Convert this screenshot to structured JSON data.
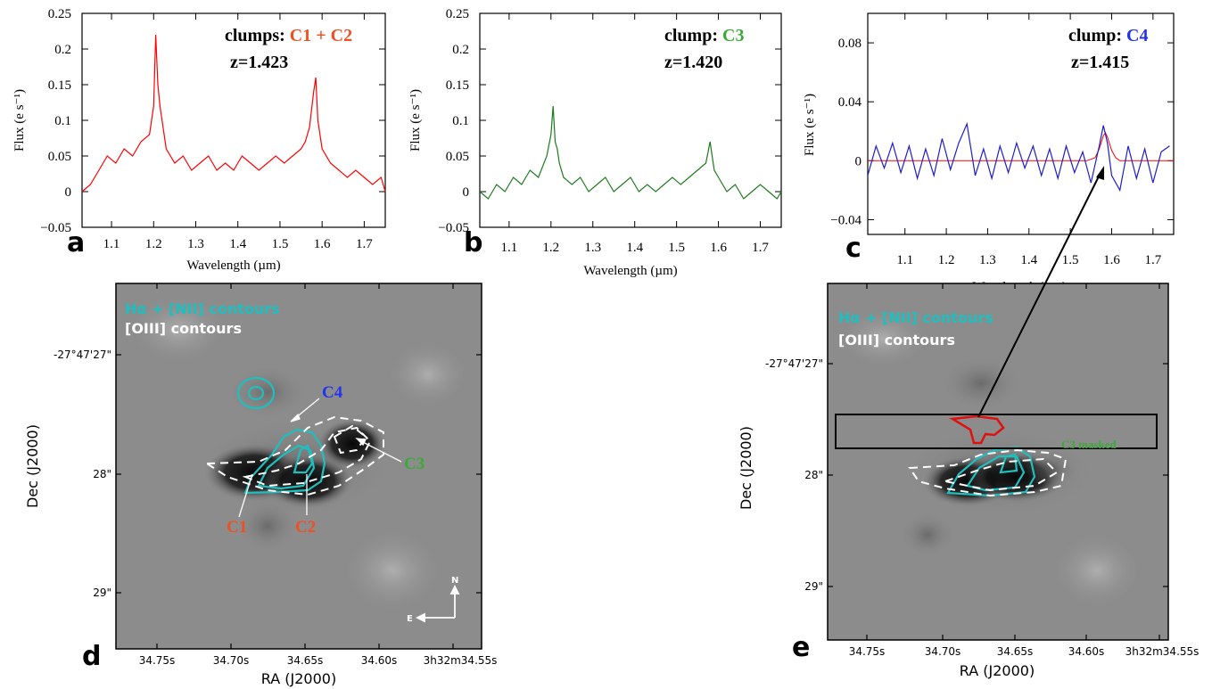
{
  "chart_data": [
    {
      "panel_letter": "a",
      "type": "line",
      "clump_prefix": "clumps:",
      "clump_name": "C1 + C2",
      "clump_color": "#f04e23",
      "redshift": "z=1.423",
      "xlabel": "Wavelength (µm)",
      "ylabel": "Flux (e s⁻¹)",
      "xlim": [
        1.03,
        1.75
      ],
      "ylim": [
        -0.05,
        0.25
      ],
      "xticks": [
        "1.1",
        "1.2",
        "1.3",
        "1.4",
        "1.5",
        "1.6",
        "1.7"
      ],
      "yticks": [
        "−0.05",
        "0",
        "0.05",
        "0.1",
        "0.15",
        "0.2",
        "0.25"
      ],
      "series": [
        {
          "color": "#ff0000",
          "x": [
            1.03,
            1.05,
            1.07,
            1.09,
            1.11,
            1.13,
            1.15,
            1.17,
            1.19,
            1.2,
            1.205,
            1.21,
            1.215,
            1.22,
            1.23,
            1.25,
            1.27,
            1.29,
            1.31,
            1.33,
            1.35,
            1.37,
            1.39,
            1.41,
            1.43,
            1.45,
            1.47,
            1.49,
            1.51,
            1.53,
            1.55,
            1.56,
            1.57,
            1.58,
            1.585,
            1.59,
            1.6,
            1.62,
            1.64,
            1.66,
            1.68,
            1.7,
            1.72,
            1.74,
            1.75
          ],
          "y": [
            0.0,
            0.01,
            0.03,
            0.05,
            0.04,
            0.06,
            0.05,
            0.07,
            0.08,
            0.12,
            0.22,
            0.15,
            0.12,
            0.1,
            0.06,
            0.04,
            0.05,
            0.03,
            0.04,
            0.05,
            0.03,
            0.04,
            0.03,
            0.05,
            0.04,
            0.03,
            0.04,
            0.05,
            0.04,
            0.05,
            0.06,
            0.07,
            0.09,
            0.14,
            0.16,
            0.1,
            0.06,
            0.04,
            0.03,
            0.02,
            0.03,
            0.02,
            0.01,
            0.02,
            0.0
          ]
        }
      ]
    },
    {
      "panel_letter": "b",
      "type": "line",
      "clump_prefix": "clump:",
      "clump_name": "C3",
      "clump_color": "#3aaa35",
      "redshift": "z=1.420",
      "xlabel": "Wavelength (µm)",
      "ylabel": "Flux (e s⁻¹)",
      "xlim": [
        1.03,
        1.75
      ],
      "ylim": [
        -0.05,
        0.25
      ],
      "xticks": [
        "1.1",
        "1.2",
        "1.3",
        "1.4",
        "1.5",
        "1.6",
        "1.7"
      ],
      "yticks": [
        "−0.05",
        "0",
        "0.05",
        "0.1",
        "0.15",
        "0.2",
        "0.25"
      ],
      "series": [
        {
          "color": "#1e7a1e",
          "x": [
            1.03,
            1.05,
            1.07,
            1.09,
            1.11,
            1.13,
            1.15,
            1.17,
            1.19,
            1.2,
            1.205,
            1.21,
            1.215,
            1.22,
            1.23,
            1.25,
            1.27,
            1.29,
            1.31,
            1.33,
            1.35,
            1.37,
            1.39,
            1.41,
            1.43,
            1.45,
            1.47,
            1.49,
            1.51,
            1.53,
            1.55,
            1.57,
            1.58,
            1.585,
            1.59,
            1.6,
            1.62,
            1.64,
            1.66,
            1.68,
            1.7,
            1.72,
            1.74,
            1.75
          ],
          "y": [
            0.0,
            -0.01,
            0.01,
            0.0,
            0.02,
            0.01,
            0.03,
            0.02,
            0.05,
            0.08,
            0.12,
            0.07,
            0.06,
            0.04,
            0.02,
            0.01,
            0.02,
            0.0,
            0.01,
            0.02,
            0.0,
            0.01,
            0.02,
            0.0,
            0.01,
            0.0,
            0.01,
            0.02,
            0.01,
            0.02,
            0.03,
            0.04,
            0.07,
            0.05,
            0.03,
            0.02,
            0.0,
            0.01,
            -0.01,
            0.0,
            0.01,
            0.0,
            -0.01,
            0.0
          ]
        }
      ]
    },
    {
      "panel_letter": "c",
      "type": "line",
      "clump_prefix": "clump:",
      "clump_name": "C4",
      "clump_color": "#2233ee",
      "redshift": "z=1.415",
      "xlabel": "Wavelength (µm)",
      "ylabel": "Flux (e s⁻¹)",
      "xlim": [
        1.01,
        1.75
      ],
      "ylim": [
        -0.05,
        0.1
      ],
      "xticks": [
        "1.1",
        "1.2",
        "1.3",
        "1.4",
        "1.5",
        "1.6",
        "1.7"
      ],
      "yticks": [
        "−0.04",
        "0",
        "0.04",
        "0.08"
      ],
      "series": [
        {
          "color": "#1d1dcc",
          "x": [
            1.01,
            1.03,
            1.05,
            1.07,
            1.09,
            1.11,
            1.13,
            1.15,
            1.17,
            1.19,
            1.21,
            1.23,
            1.25,
            1.27,
            1.29,
            1.31,
            1.33,
            1.35,
            1.37,
            1.39,
            1.41,
            1.43,
            1.45,
            1.47,
            1.49,
            1.51,
            1.53,
            1.55,
            1.57,
            1.58,
            1.59,
            1.6,
            1.62,
            1.64,
            1.66,
            1.68,
            1.7,
            1.72,
            1.74
          ],
          "y": [
            -0.01,
            0.01,
            -0.005,
            0.012,
            -0.008,
            0.01,
            -0.012,
            0.008,
            -0.01,
            0.015,
            -0.006,
            0.012,
            0.025,
            -0.01,
            0.008,
            -0.012,
            0.01,
            -0.008,
            0.012,
            -0.005,
            0.01,
            -0.01,
            0.008,
            -0.012,
            0.01,
            -0.008,
            0.006,
            -0.015,
            0.01,
            0.024,
            0.012,
            -0.01,
            -0.02,
            0.01,
            -0.012,
            0.008,
            -0.015,
            0.006,
            0.01
          ]
        },
        {
          "color": "#ff0000",
          "x": [
            1.01,
            1.54,
            1.56,
            1.57,
            1.58,
            1.585,
            1.59,
            1.6,
            1.61,
            1.62,
            1.75
          ],
          "y": [
            0,
            0,
            0.002,
            0.008,
            0.017,
            0.019,
            0.016,
            0.007,
            0.002,
            0,
            0
          ]
        }
      ]
    }
  ],
  "images": [
    {
      "panel_letter": "d",
      "legend_halpha": "Hα + [NII] contours",
      "legend_oiii": "[OIII] contours",
      "dec_ticks": [
        "-27°47'27\"",
        "28\"",
        "29\""
      ],
      "ra_ticks": [
        "34.75s",
        "34.70s",
        "34.65s",
        "34.60s",
        "3h32m34.55s"
      ],
      "ylabel": "Dec (J2000)",
      "xlabel": "RA (J2000)",
      "clump_labels": [
        "C1",
        "C2",
        "C3",
        "C4"
      ],
      "compass_n": "N",
      "compass_e": "E"
    },
    {
      "panel_letter": "e",
      "legend_halpha": "Hα + [NII] contours",
      "legend_oiii": "[OIII] contours",
      "dec_ticks": [
        "-27°47'27\"",
        "28\"",
        "29\""
      ],
      "ra_ticks": [
        "34.75s",
        "34.70s",
        "34.65s",
        "34.60s",
        "3h32m34.55s"
      ],
      "ylabel": "Dec (J2000)",
      "xlabel": "RA (J2000)",
      "masked_label": "C3 masked"
    }
  ],
  "colors": {
    "cyan_contour": "#1fbfbf",
    "oiii_contour": "#ffffff",
    "c1_c2_label": "#f04e23",
    "c3_label": "#3aaa35",
    "c4_label": "#2233ee",
    "mask_contour": "#e01010"
  }
}
